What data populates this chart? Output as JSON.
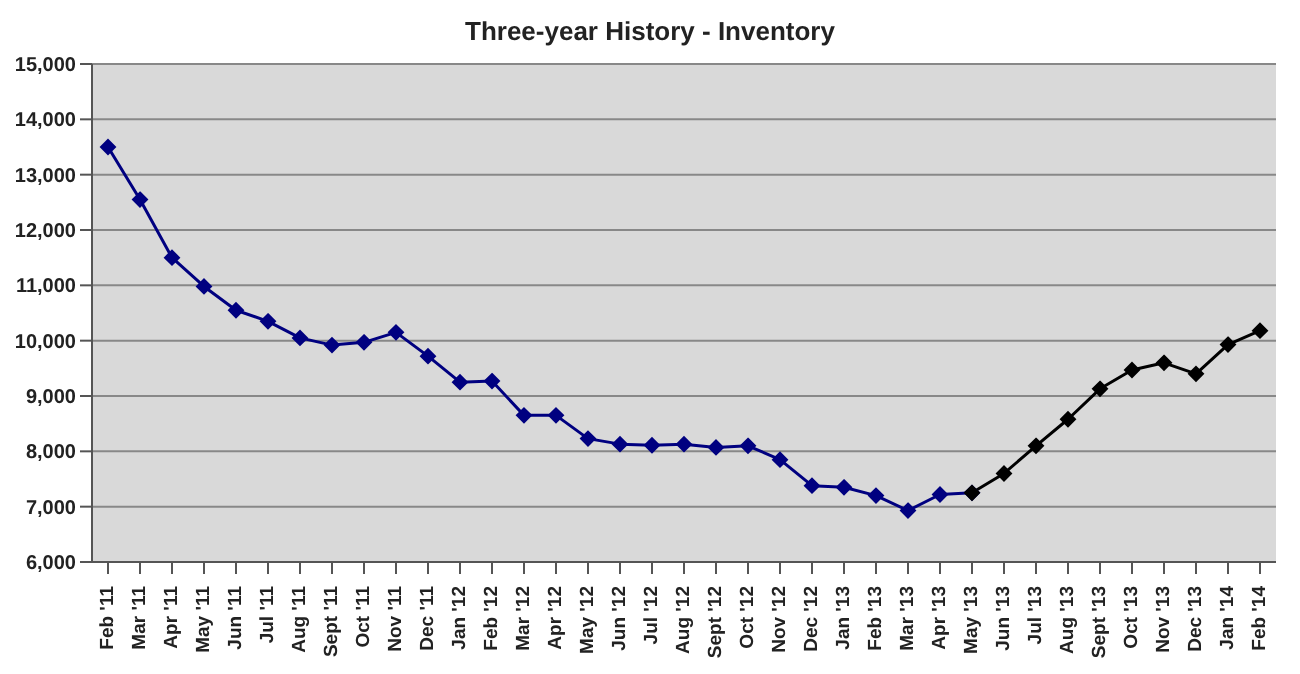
{
  "chart_data": {
    "type": "line",
    "title": "Three-year History - Inventory",
    "categories": [
      "Feb '11",
      "Mar '11",
      "Apr '11",
      "May '11",
      "Jun '11",
      "Jul '11",
      "Aug '11",
      "Sept '11",
      "Oct '11",
      "Nov '11",
      "Dec '11",
      "Jan '12",
      "Feb '12",
      "Mar '12",
      "Apr '12",
      "May '12",
      "Jun '12",
      "Jul '12",
      "Aug '12",
      "Sept '12",
      "Oct '12",
      "Nov '12",
      "Dec '12",
      "Jan '13",
      "Feb '13",
      "Mar '13",
      "Apr '13",
      "May '13",
      "Jun '13",
      "Jul '13",
      "Aug '13",
      "Sept '13",
      "Oct '13",
      "Nov '13",
      "Dec '13",
      "Jan '14",
      "Feb '14"
    ],
    "series": [
      {
        "color": "#000080",
        "values": [
          13500,
          12550,
          11500,
          10980,
          10550,
          10350,
          10050,
          9920,
          9970,
          10150,
          9720,
          9250,
          9270,
          8650,
          8650,
          8230,
          8130,
          8110,
          8130,
          8070,
          8100,
          7850,
          7380,
          7350,
          7200,
          6930,
          7220,
          7250,
          null,
          null,
          null,
          null,
          null,
          null,
          null,
          null,
          null
        ]
      },
      {
        "color": "#000000",
        "values": [
          null,
          null,
          null,
          null,
          null,
          null,
          null,
          null,
          null,
          null,
          null,
          null,
          null,
          null,
          null,
          null,
          null,
          null,
          null,
          null,
          null,
          null,
          null,
          null,
          null,
          null,
          null,
          7250,
          7600,
          8100,
          8580,
          9130,
          9470,
          9600,
          9400,
          9930,
          10180
        ]
      }
    ],
    "ylim": [
      6000,
      15000
    ],
    "yticks": [
      {
        "value": 6000,
        "label": "6,000"
      },
      {
        "value": 7000,
        "label": "7,000"
      },
      {
        "value": 8000,
        "label": "8,000"
      },
      {
        "value": 9000,
        "label": "9,000"
      },
      {
        "value": 10000,
        "label": "10,000"
      },
      {
        "value": 11000,
        "label": "11,000"
      },
      {
        "value": 12000,
        "label": "12,000"
      },
      {
        "value": 13000,
        "label": "13,000"
      },
      {
        "value": 14000,
        "label": "14,000"
      },
      {
        "value": 15000,
        "label": "15,000"
      }
    ],
    "grid": "y",
    "marker": "diamond"
  }
}
